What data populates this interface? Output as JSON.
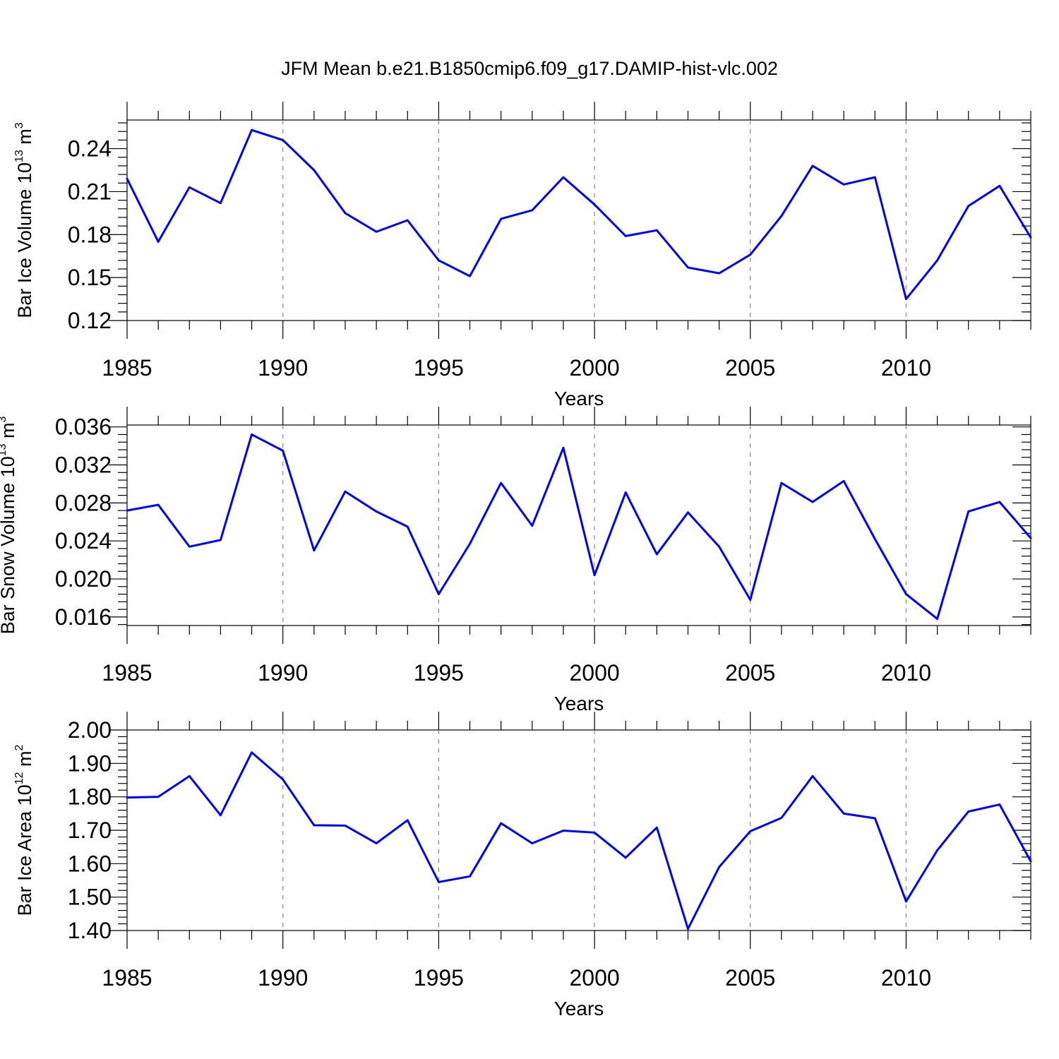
{
  "title": "JFM Mean b.e21.B1850cmip6.f09_g17.DAMIP-hist-vlc.002",
  "colors": {
    "line": "#0000ff",
    "axis": "#000000",
    "grid": "#888888"
  },
  "chart_data": [
    {
      "type": "line",
      "xlabel": "Years",
      "ylabel": {
        "text": "Bar Ice Volume 10",
        "exp": "13",
        "unit": " m",
        "unit_exp": "3"
      },
      "xlim": [
        1985,
        2014
      ],
      "ylim": [
        0.12,
        0.26
      ],
      "xticks": [
        1985,
        1990,
        1995,
        2000,
        2005,
        2010
      ],
      "yticks": [
        "0.12",
        "0.15",
        "0.18",
        "0.21",
        "0.24"
      ],
      "x": [
        1985,
        1986,
        1987,
        1988,
        1989,
        1990,
        1991,
        1992,
        1993,
        1994,
        1995,
        1996,
        1997,
        1998,
        1999,
        2000,
        2001,
        2002,
        2003,
        2004,
        2005,
        2006,
        2007,
        2008,
        2009,
        2010,
        2011,
        2012,
        2013,
        2014
      ],
      "series": [
        {
          "values": [
            0.219,
            0.175,
            0.213,
            0.202,
            0.253,
            0.246,
            0.225,
            0.195,
            0.182,
            0.19,
            0.162,
            0.151,
            0.191,
            0.197,
            0.22,
            0.201,
            0.179,
            0.183,
            0.157,
            0.153,
            0.166,
            0.193,
            0.228,
            0.215,
            0.22,
            0.135,
            0.162,
            0.2,
            0.214,
            0.178
          ]
        }
      ]
    },
    {
      "type": "line",
      "xlabel": "Years",
      "ylabel": {
        "text": "Bar Snow Volume 10",
        "exp": "13",
        "unit": " m",
        "unit_exp": "3"
      },
      "xlim": [
        1985,
        2014
      ],
      "ylim": [
        0.0151,
        0.0362
      ],
      "xticks": [
        1985,
        1990,
        1995,
        2000,
        2005,
        2010
      ],
      "yticks": [
        "0.016",
        "0.020",
        "0.024",
        "0.028",
        "0.032",
        "0.036"
      ],
      "x": [
        1985,
        1986,
        1987,
        1988,
        1989,
        1990,
        1991,
        1992,
        1993,
        1994,
        1995,
        1996,
        1997,
        1998,
        1999,
        2000,
        2001,
        2002,
        2003,
        2004,
        2005,
        2006,
        2007,
        2008,
        2009,
        2010,
        2011,
        2012,
        2013,
        2014
      ],
      "series": [
        {
          "values": [
            0.0272,
            0.0278,
            0.0234,
            0.0241,
            0.0352,
            0.0335,
            0.023,
            0.0292,
            0.0271,
            0.0255,
            0.0184,
            0.0237,
            0.0301,
            0.0256,
            0.0338,
            0.0204,
            0.0291,
            0.0226,
            0.027,
            0.0234,
            0.0178,
            0.0301,
            0.0281,
            0.0303,
            0.0242,
            0.0184,
            0.0158,
            0.0271,
            0.0281,
            0.0243
          ]
        }
      ]
    },
    {
      "type": "line",
      "xlabel": "Years",
      "ylabel": {
        "text": "Bar Ice Area 10",
        "exp": "12",
        "unit": " m",
        "unit_exp": "2"
      },
      "xlim": [
        1985,
        2014
      ],
      "ylim": [
        1.4,
        2.0
      ],
      "xticks": [
        1985,
        1990,
        1995,
        2000,
        2005,
        2010
      ],
      "yticks": [
        "1.40",
        "1.50",
        "1.60",
        "1.70",
        "1.80",
        "1.90",
        "2.00"
      ],
      "x": [
        1985,
        1986,
        1987,
        1988,
        1989,
        1990,
        1991,
        1992,
        1993,
        1994,
        1995,
        1996,
        1997,
        1998,
        1999,
        2000,
        2001,
        2002,
        2003,
        2004,
        2005,
        2006,
        2007,
        2008,
        2009,
        2010,
        2011,
        2012,
        2013,
        2014
      ],
      "series": [
        {
          "values": [
            1.798,
            1.8,
            1.862,
            1.745,
            1.933,
            1.852,
            1.715,
            1.714,
            1.661,
            1.73,
            1.545,
            1.562,
            1.721,
            1.661,
            1.699,
            1.693,
            1.618,
            1.708,
            1.405,
            1.59,
            1.697,
            1.737,
            1.862,
            1.75,
            1.736,
            1.487,
            1.64,
            1.756,
            1.777,
            1.607
          ]
        }
      ]
    }
  ]
}
